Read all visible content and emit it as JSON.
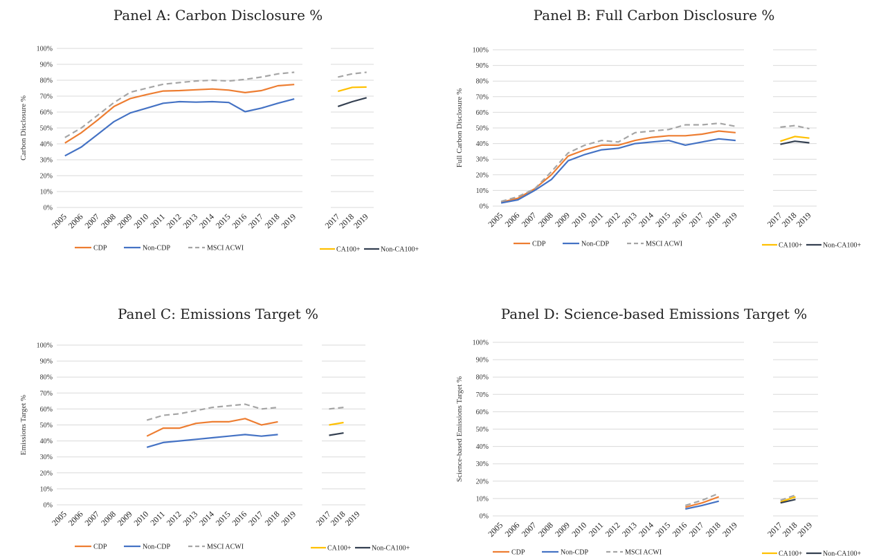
{
  "colors": {
    "cdp": "#ED7D31",
    "noncdp": "#4472C4",
    "msci": "#A5A5A5",
    "ca100": "#FFC000",
    "nonca100": "#333F50",
    "grid": "#D9D9D9"
  },
  "chart_data": [
    {
      "type": "line",
      "title": "Panel A: Carbon Disclosure %",
      "ylabel": "Carbon Disclosure %",
      "ylim": [
        0,
        100
      ],
      "yticks": [
        "0%",
        "10%",
        "20%",
        "30%",
        "40%",
        "50%",
        "60%",
        "70%",
        "80%",
        "90%",
        "100%"
      ],
      "categories": [
        "2005",
        "2006",
        "2007",
        "2008",
        "2009",
        "2010",
        "2011",
        "2012",
        "2013",
        "2014",
        "2015",
        "2016",
        "2017",
        "2018",
        "2019"
      ],
      "series": [
        {
          "name": "CDP",
          "values": [
            40.5,
            47,
            55,
            63.5,
            68.5,
            71,
            73.2,
            73.5,
            74,
            74.5,
            73.8,
            72.2,
            73.5,
            76.5,
            77.3
          ]
        },
        {
          "name": "Non-CDP",
          "values": [
            32.5,
            38,
            46,
            54,
            59.5,
            62.5,
            65.5,
            66.5,
            66.2,
            66.5,
            66,
            60.2,
            62.5,
            65.5,
            68.2
          ]
        },
        {
          "name": "MSCI ACWI",
          "values": [
            44,
            50,
            58,
            66,
            72.5,
            75,
            77.5,
            78.5,
            79.5,
            80,
            79.5,
            80.5,
            82,
            84,
            85
          ]
        }
      ],
      "categories2": [
        "2017",
        "2018",
        "2019"
      ],
      "series2": [
        {
          "name": "MSCI ACWI",
          "values": [
            82,
            84,
            85
          ]
        },
        {
          "name": "CA100+",
          "values": [
            73,
            75.5,
            75.7
          ]
        },
        {
          "name": "Non-CA100+",
          "values": [
            63.5,
            66.5,
            69
          ]
        }
      ]
    },
    {
      "type": "line",
      "title": "Panel B: Full Carbon Disclosure %",
      "ylabel": "Full Carbon Disclosure %",
      "ylim": [
        0,
        100
      ],
      "yticks": [
        "0%",
        "10%",
        "20%",
        "30%",
        "40%",
        "50%",
        "60%",
        "70%",
        "80%",
        "90%",
        "100%"
      ],
      "categories": [
        "2005",
        "2006",
        "2007",
        "2008",
        "2009",
        "2010",
        "2011",
        "2012",
        "2013",
        "2014",
        "2015",
        "2016",
        "2017",
        "2018",
        "2019"
      ],
      "series": [
        {
          "name": "CDP",
          "values": [
            2.5,
            5,
            11,
            20,
            32,
            36,
            39,
            39,
            42,
            44,
            45,
            45,
            46,
            48,
            47
          ]
        },
        {
          "name": "Non-CDP",
          "values": [
            2,
            4,
            10,
            17,
            29,
            33,
            36,
            37,
            40,
            41,
            42,
            39,
            41,
            43,
            42
          ]
        },
        {
          "name": "MSCI ACWI",
          "values": [
            3,
            6,
            11,
            22,
            34,
            39,
            42,
            41,
            47,
            48,
            49,
            52,
            52,
            53,
            51
          ]
        }
      ],
      "categories2": [
        "2017",
        "2018",
        "2019"
      ],
      "series2": [
        {
          "name": "MSCI ACWI",
          "values": [
            50.5,
            51.5,
            49.5
          ]
        },
        {
          "name": "CA100+",
          "values": [
            41.5,
            44.5,
            43.5
          ]
        },
        {
          "name": "Non-CA100+",
          "values": [
            39.5,
            41.5,
            40.5
          ]
        }
      ]
    },
    {
      "type": "line",
      "title": "Panel C: Emissions Target %",
      "ylabel": "Emissions Target %",
      "ylim": [
        0,
        100
      ],
      "yticks": [
        "0%",
        "10%",
        "20%",
        "30%",
        "40%",
        "50%",
        "60%",
        "70%",
        "80%",
        "90%",
        "100%"
      ],
      "categories": [
        "2005",
        "2006",
        "2007",
        "2008",
        "2009",
        "2010",
        "2011",
        "2012",
        "2013",
        "2014",
        "2015",
        "2016",
        "2017",
        "2018",
        "2019"
      ],
      "series": [
        {
          "name": "CDP",
          "values": [
            null,
            null,
            null,
            null,
            null,
            43,
            48,
            48,
            51,
            52,
            52,
            54,
            50,
            52,
            null
          ]
        },
        {
          "name": "Non-CDP",
          "values": [
            null,
            null,
            null,
            null,
            null,
            36,
            39,
            40,
            41,
            42,
            43,
            44,
            43,
            44,
            null
          ]
        },
        {
          "name": "MSCI ACWI",
          "values": [
            null,
            null,
            null,
            null,
            null,
            53,
            56,
            57,
            59,
            61,
            62,
            63,
            60,
            61,
            null
          ]
        }
      ],
      "categories2": [
        "2017",
        "2018",
        "2019"
      ],
      "series2": [
        {
          "name": "MSCI ACWI",
          "values": [
            60,
            61,
            null
          ]
        },
        {
          "name": "CA100+",
          "values": [
            50,
            51.5,
            null
          ]
        },
        {
          "name": "Non-CA100+",
          "values": [
            43.5,
            45,
            null
          ]
        }
      ]
    },
    {
      "type": "line",
      "title": "Panel D: Science-based Emissions Target %",
      "ylabel": "Science-based Emissions Target %",
      "ylim": [
        0,
        100
      ],
      "yticks": [
        "0%",
        "10%",
        "20%",
        "30%",
        "40%",
        "50%",
        "60%",
        "70%",
        "80%",
        "90%",
        "100%"
      ],
      "categories": [
        "2005",
        "2006",
        "2007",
        "2008",
        "2009",
        "2010",
        "2011",
        "2012",
        "2013",
        "2014",
        "2015",
        "2016",
        "2017",
        "2018",
        "2019"
      ],
      "series": [
        {
          "name": "CDP",
          "values": [
            null,
            null,
            null,
            null,
            null,
            null,
            null,
            null,
            null,
            null,
            null,
            5,
            7.5,
            11,
            null
          ]
        },
        {
          "name": "Non-CDP",
          "values": [
            null,
            null,
            null,
            null,
            null,
            null,
            null,
            null,
            null,
            null,
            null,
            4,
            6,
            8.5,
            null
          ]
        },
        {
          "name": "MSCI ACWI",
          "values": [
            null,
            null,
            null,
            null,
            null,
            null,
            null,
            null,
            null,
            null,
            null,
            6,
            9,
            13,
            null
          ]
        }
      ],
      "categories2": [
        "2017",
        "2018",
        "2019"
      ],
      "series2": [
        {
          "name": "MSCI ACWI",
          "values": [
            9,
            12,
            null
          ]
        },
        {
          "name": "CA100+",
          "values": [
            8,
            11,
            null
          ]
        },
        {
          "name": "Non-CA100+",
          "values": [
            7.5,
            9.5,
            null
          ]
        }
      ]
    }
  ]
}
